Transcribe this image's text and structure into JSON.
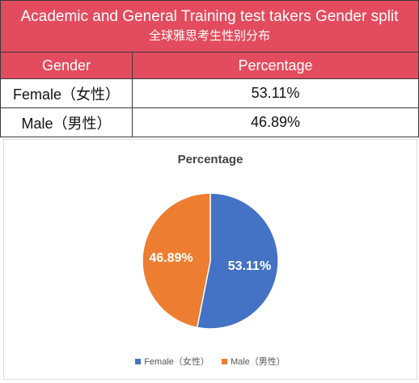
{
  "table": {
    "title": "Academic and General Training test takers Gender split",
    "subtitle": "全球雅思考生性别分布",
    "header": [
      "Gender",
      "Percentage"
    ],
    "rows": [
      {
        "gender": "Female（女性）",
        "percentage": "53.11%"
      },
      {
        "gender": "Male（男性）",
        "percentage": "46.89%"
      }
    ]
  },
  "chart_data": {
    "type": "pie",
    "title": "Percentage",
    "categories": [
      "Female（女性）",
      "Male（男性）"
    ],
    "values": [
      53.11,
      46.89
    ],
    "data_labels": [
      "53.11%",
      "46.89%"
    ],
    "colors": [
      "#4472c4",
      "#ed7d31"
    ],
    "legend_position": "bottom"
  }
}
